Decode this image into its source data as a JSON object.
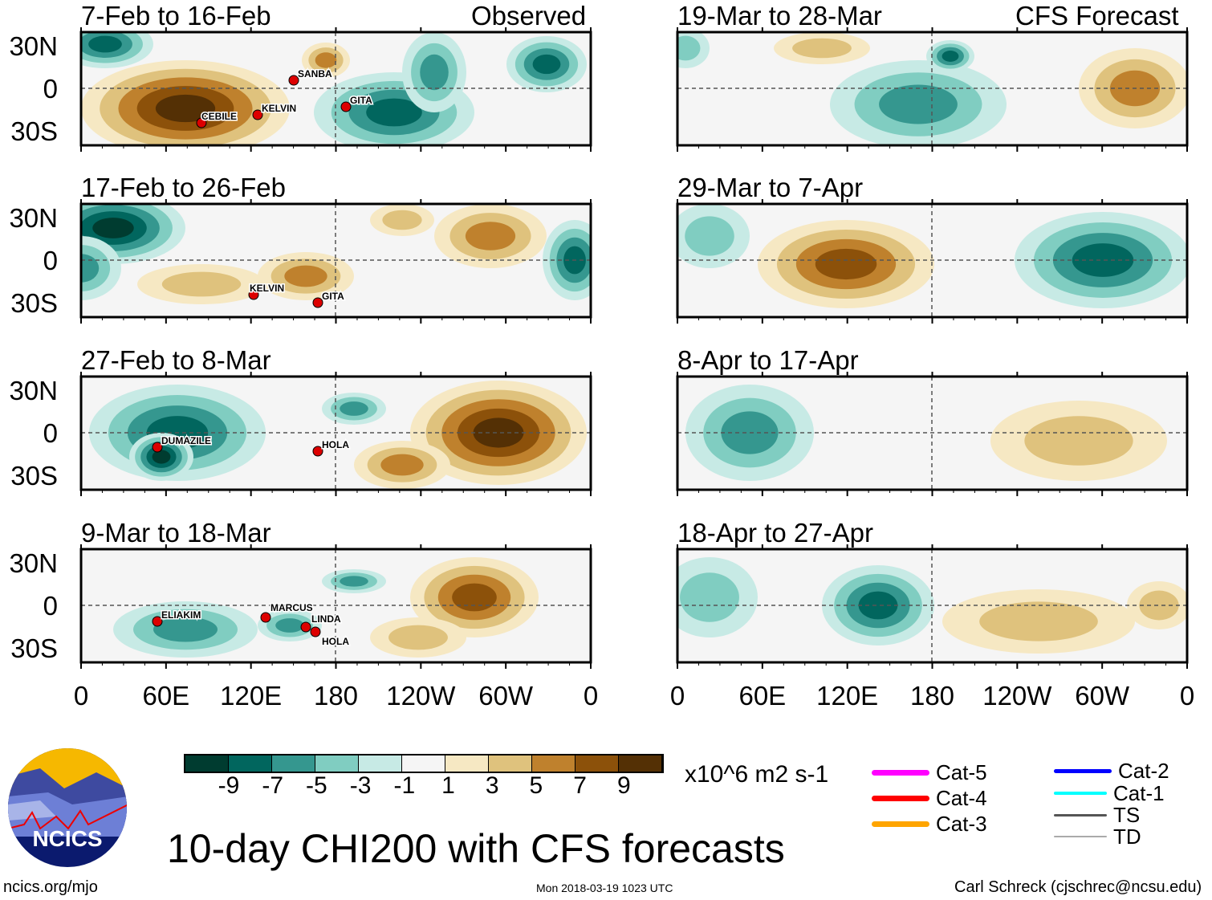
{
  "header": {
    "observed_label": "Observed",
    "forecast_label": "CFS Forecast"
  },
  "panels": {
    "observed": [
      {
        "title": "7-Feb to 16-Feb",
        "storms": [
          "SANBA",
          "KELVIN",
          "CEBILE",
          "GITA"
        ]
      },
      {
        "title": "17-Feb to 26-Feb",
        "storms": [
          "KELVIN",
          "GITA"
        ]
      },
      {
        "title": "27-Feb to 8-Mar",
        "storms": [
          "DUMAZILE",
          "HOLA"
        ]
      },
      {
        "title": "9-Mar to 18-Mar",
        "storms": [
          "ELIAKIM",
          "MARCUS",
          "LINDA",
          "HOLA"
        ]
      }
    ],
    "forecast": [
      {
        "title": "19-Mar to 28-Mar"
      },
      {
        "title": "29-Mar to 7-Apr"
      },
      {
        "title": "8-Apr to 17-Apr"
      },
      {
        "title": "18-Apr to 27-Apr"
      }
    ]
  },
  "axes": {
    "lat_labels": [
      "30N",
      "0",
      "30S"
    ],
    "lon_labels": [
      "0",
      "60E",
      "120E",
      "180",
      "120W",
      "60W",
      "0"
    ]
  },
  "colorbar": {
    "ticks": [
      "-9",
      "-7",
      "-5",
      "-3",
      "-1",
      "1",
      "3",
      "5",
      "7",
      "9"
    ],
    "units": "x10^6 m2 s-1",
    "colors": [
      "#003c30",
      "#01665e",
      "#35978f",
      "#80cdc1",
      "#c7eae5",
      "#f5f5f5",
      "#f6e8c3",
      "#dfc27d",
      "#bf812d",
      "#8c510a",
      "#543005"
    ]
  },
  "legend": [
    {
      "label": "Cat-5",
      "color": "#ff00ff"
    },
    {
      "label": "Cat-4",
      "color": "#ff0000"
    },
    {
      "label": "Cat-3",
      "color": "#ffa500"
    },
    {
      "label": "Cat-2",
      "color": "#0000ff"
    },
    {
      "label": "Cat-1",
      "color": "#00ffff"
    },
    {
      "label": "TS",
      "color": "#555555"
    },
    {
      "label": "TD",
      "color": "#aaaaaa"
    }
  ],
  "title": "10-day CHI200 with CFS forecasts",
  "logo": {
    "text": "NCICS"
  },
  "footer": {
    "url": "ncics.org/mjo",
    "timestamp": "Mon 2018-03-19 1023 UTC",
    "author": "Carl Schreck (cjschrec@ncsu.edu)"
  }
}
